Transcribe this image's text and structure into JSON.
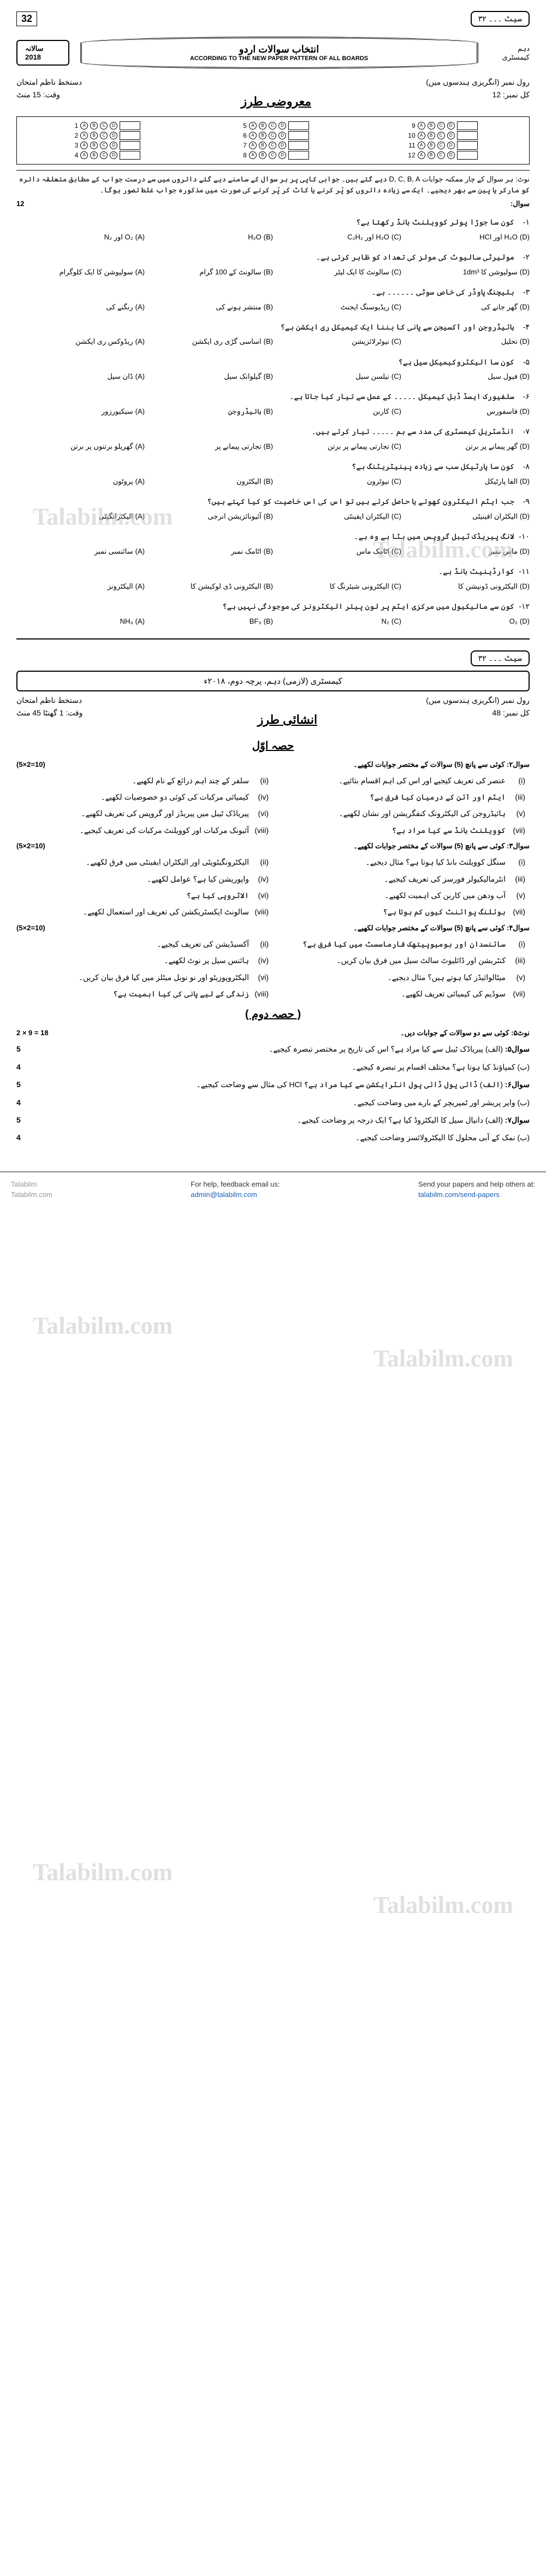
{
  "paper": {
    "fish_label_1": "سیٹ ۔۔۔ ۳۲",
    "big_num": "32",
    "banner_title": "انتخاب سوالات اردو",
    "banner_sub": "ACCORDING TO THE NEW PAPER PATTERN OF ALL BOARDS",
    "stamp_year": "سالانہ 2018",
    "subject_header": "رول نمبر (انگریزی ہندسوں میں)",
    "level": "دہم کیمسٹری",
    "total_marks_label": "کل نمبر: 12",
    "time_label": "وقت: 15 منٹ",
    "exam_type": "دستخط ناظم امتحان",
    "objective_title": "معروضی طرز",
    "note": "نوٹ: ہر سوال کے چار ممکنہ جوابات D, C, B, A دیے گئے ہیں۔ جوابی کاپی پر ہر سوال کے سامنے دیے گئے دائروں میں سے درست جواب کے مطابق متعلقہ دائرہ کو مارکر یا پین سے بھر دیجیے۔ ایک سے زیادہ دائروں کو پُر کرنے یا کاٹ کر پُر کرنے کی صورت میں مذکورہ جواب غلط تصور ہوگا۔",
    "marks_right": "12",
    "q_label": "سوال:"
  },
  "bubble": {
    "heads": [
      "A",
      "B",
      "C",
      "D"
    ],
    "cols": [
      [
        1,
        2,
        3,
        4
      ],
      [
        5,
        6,
        7,
        8
      ],
      [
        9,
        10,
        11,
        12
      ]
    ]
  },
  "mcqs": [
    {
      "n": "۱-",
      "q": "کون سا جوڑا پولر کوویلنٹ بانڈ رکھتا ہے؟",
      "opts": [
        "O₂ اور N₂",
        "H₂O",
        "H₂O اور C₂H₂",
        "H₂O اور HCl"
      ]
    },
    {
      "n": "۲-",
      "q": "مولیرٹی سالیوٹ کی مولز کی تعداد کو ظاہر کرتی ہے۔",
      "opts": [
        "سولیوشن کا ایک کلوگرام",
        "سالونٹ کے 100 گرام",
        "سالونٹ کا ایک لیٹر",
        "سولیوشن کا 1dm³"
      ]
    },
    {
      "n": "۳-",
      "q": "بلیچنگ پاوڈر کی خاص سوٹی ۔۔۔۔۔۔ ہے۔",
      "opts": [
        "رنگنے کی",
        "منتشر ہونے کی",
        "ریڈیوسنگ ایجنٹ",
        "گھر جانے کی"
      ]
    },
    {
      "n": "۴-",
      "q": "ہائیڈروجن اور آکسیجن سے پانی کا بننا ایک کیمیکل ری ایکشن ہے؟",
      "opts": [
        "ریڈوکس ری ایکشن",
        "اساسی گڑی ری ایکشن",
        "نیوٹرلائزیشن",
        "تحلیل"
      ]
    },
    {
      "n": "۵-",
      "q": "کون سا الیکٹروکیمیکل سیل ہے؟",
      "opts": [
        "ڈان سیل",
        "گیلوانک سیل",
        "نیلسن سیل",
        "فیول سیل"
      ]
    },
    {
      "n": "۶-",
      "q": "سلفیورک ایسڈ ڈبل کیمیکل ۔۔۔۔۔ کے عمل سے تیار کیا جاتا ہے۔",
      "opts": [
        "سیکیورزور",
        "ہائیڈروجن",
        "کاربن",
        "فاسفورس"
      ]
    },
    {
      "n": "۷-",
      "q": "انڈسٹریل کیمسٹری کی مدد سے ہم ۔۔۔۔۔ تیار کرتے ہیں۔",
      "opts": [
        "گھریلو برتنوں پر برتن",
        "تجارتی پیمانے پر",
        "تجارتی پیمانے پر برتن",
        "گھر پیمانے پر برتن"
      ]
    },
    {
      "n": "۸-",
      "q": "کون سا پارٹیکل سب سے زیادہ پینیٹریٹنگ ہے؟",
      "opts": [
        "پروٹون",
        "الیکٹرون",
        "نیوٹرون",
        "الفا پارٹیکل"
      ]
    },
    {
      "n": "۹-",
      "q": "جب ایٹم الیکٹرون کھوتے یا حاصل کرتے ہیں تو اس کی اس خاصیت کو کیا کہتے ہیں؟",
      "opts": [
        "الیکٹرانگیٹی",
        "آئیونائزیشن انرجی",
        "الیکٹران ایفینٹی",
        "الیکٹران افینیٹی"
      ]
    },
    {
      "n": "۱۰-",
      "q": "لانگ پیریڈک ٹیبل گروپس میں بٹا ہے وہ ہے۔",
      "opts": [
        "سائنسی نمبر",
        "اٹامک نمبر",
        "اٹامک ماس",
        "ماس نمبر"
      ]
    },
    {
      "n": "۱۱-",
      "q": "کوارڈینیٹ بانڈ ہے۔",
      "opts": [
        "الیکٹرونز",
        "الیکٹرونی ڈی لوکیشن کا",
        "الیکٹرونی شیئرنگ کا",
        "الیکٹرونی ڈونیشن کا"
      ]
    },
    {
      "n": "۱۲-",
      "q": "کون سے مالیکیول میں مرکزی ایٹم پر لون پیئر الیکٹرونز کی موجودگی نہیں ہے؟",
      "opts": [
        "NH₃",
        "BF₃",
        "N₂",
        "O₂"
      ]
    }
  ],
  "paper2": {
    "fish_label": "سیٹ ۔۔۔ ۳۲",
    "subj_box": "کیمسٹری (لازمی) دہم، پرچہ دوم، ۲۰۱۸ء",
    "roll": "رول نمبر (انگریزی ہندسوں میں)",
    "sign": "دستخط ناظم امتحان",
    "total": "کل نمبر: 48",
    "time": "وقت: 1 گھنٹا 45 منٹ",
    "title": "انشائی طرز",
    "part1": "حصہ اوّل",
    "part2": "( حصہ دوم )",
    "sq2_head": "سوال۲:  کوئی سے پانچ (5) سوالات کے مختصر جوابات لکھیے۔",
    "sq3_head": "سوال۳:  کوئی سے پانچ (5) سوالات کے مختصر جوابات لکھیے۔",
    "sq4_head": "سوال۴:  کوئی سے پانچ (5) سوالات کے مختصر جوابات لکھیے۔",
    "marks_5x2": "(5×2=10)",
    "long_head": "کوئی سے دو سوالات کے جوابات دیں۔",
    "long_marks": "2 × 9 = 18",
    "note5": "نوٹ۵:"
  },
  "sq2": [
    {
      "l": "(i)",
      "t": "عنصر کی تعریف کیجیے اور اس کی اہم اقسام بتائیے۔"
    },
    {
      "l": "(ii)",
      "t": "سلفر کے چند اہم ذرائع کے نام لکھیے۔"
    },
    {
      "l": "(iii)",
      "t": "ایٹم اور آئن کے درمیان کیا فرق ہے؟"
    },
    {
      "l": "(iv)",
      "t": "کیمیائی مرکبات کی کوئی دو خصوصیات لکھیے۔"
    },
    {
      "l": "(v)",
      "t": "ہائیڈروجن کی الیکٹرونک کنفگریشن اور نشان لکھیے۔"
    },
    {
      "l": "(vi)",
      "t": "پیریاڈک ٹیبل میں پیریڈز اور گروپس کی تعریف لکھیے۔"
    },
    {
      "l": "(vii)",
      "t": "کوویلنٹ بانڈ سے کیا مراد ہے؟"
    },
    {
      "l": "(viii)",
      "t": "آئیونک مرکبات اور کوویلنٹ مرکبات کی تعریف کیجیے۔"
    }
  ],
  "sq3": [
    {
      "l": "(i)",
      "t": "سنگل کوویلنٹ بانڈ کیا ہوتا ہے؟ مثال دیجیے۔"
    },
    {
      "l": "(ii)",
      "t": "الیکٹرونگیٹویٹی اور الیکٹران ایفینٹی میں فرق لکھیے۔"
    },
    {
      "l": "(iii)",
      "t": "انٹرمالیکیولر فورسز کی تعریف کیجیے۔"
    },
    {
      "l": "(iv)",
      "t": "واپوریشن کیا ہے؟ عوامل لکھیے۔"
    },
    {
      "l": "(v)",
      "t": "آب ودھن میں کاربن کی اہمیت لکھیے۔"
    },
    {
      "l": "(vi)",
      "t": "الاٹروپی کیا ہے؟"
    },
    {
      "l": "(vii)",
      "t": "بوئلنگ پوائنٹ کیوں کم ہوتا ہے؟"
    },
    {
      "l": "(viii)",
      "t": "سالونٹ ایکسٹریکشن کی تعریف اور استعمال لکھیے۔"
    }
  ],
  "sq4": [
    {
      "l": "(i)",
      "t": "سائنسدان اور ہومیوپیتھک فارماسسٹ میں کیا فرق ہے؟"
    },
    {
      "l": "(ii)",
      "t": "آکسیڈیشن کی تعریف کیجیے۔"
    },
    {
      "l": "(iii)",
      "t": "کنٹریشن اور ڈائلیوٹ سالٹ سیل میں فرق بیان کریں۔"
    },
    {
      "l": "(iv)",
      "t": "ہائنس سیل پر نوٹ لکھیے۔"
    },
    {
      "l": "(v)",
      "t": "میٹالوائیڈز کیا ہوتے ہیں؟ مثال دیجیے۔"
    },
    {
      "l": "(vi)",
      "t": "الیکٹروپوزیٹو اور نو نوبل میٹلز میں کیا فرق بیان کریں۔"
    },
    {
      "l": "(vii)",
      "t": "سوڈیم کی کیمیائی تعریف لکھیے۔"
    },
    {
      "l": "(viii)",
      "t": "زندگی کے لیے پانی کی کیا اہمیت ہے؟"
    }
  ],
  "longq": [
    {
      "n": "سوال۵:",
      "a": "(الف) پیریاڈک ٹیبل سے کیا مراد ہے؟ اس کی تاریخ پر مختصر تبصرہ کیجیے۔",
      "am": "5",
      "b": "(ب) کمپاؤنڈ کیا ہوتا ہے؟ مختلف اقسام پر تبصرہ کیجیے۔",
      "bm": "4"
    },
    {
      "n": "سوال۶:",
      "a": "(الف) ڈائی پول ڈائی پول انٹرایکشن سے کیا مراد ہے؟ HCl کی مثال سے وضاحت کیجیے۔",
      "am": "5",
      "b": "(ب) واپر پریشر اور ٹمپریچر کے بارے میں وضاحت کیجیے۔",
      "bm": "4"
    },
    {
      "n": "سوال۷:",
      "a": "(الف) دانیال سیل کا الیکٹروڈ کیا ہے؟ ایک درجہ پر وضاحت کیجیے۔",
      "am": "5",
      "b": "(ب) نمک کے آبی محلول کا الیکٹرولائسز وضاحت کیجیے۔",
      "bm": "4"
    }
  ],
  "footer": {
    "wm_small": "Talabilm\nTalabilm.com",
    "help_label": "For help, feedback email us:",
    "help_email": "admin@talabilm.com",
    "send_label": "Send your papers and help others at:",
    "send_url": "talabilm.com/send-papers"
  },
  "watermark": "Talabilm.com"
}
